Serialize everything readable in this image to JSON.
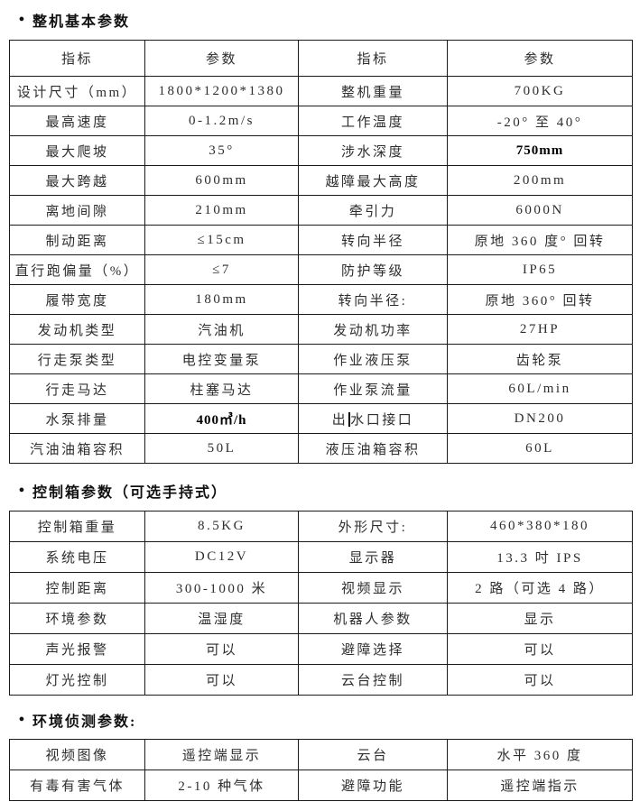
{
  "colors": {
    "background": "#ffffff",
    "text": "#2e2e2e",
    "heading_text": "#111111",
    "border": "#1a1a1a",
    "bold_text": "#000000"
  },
  "sections": [
    {
      "bullet": "●",
      "heading": "整机基本参数",
      "header": [
        "指标",
        "参数",
        "指标",
        "参数"
      ],
      "rows": [
        [
          {
            "text": "设计尺寸（mm）"
          },
          {
            "text": "1800*1200*1380"
          },
          {
            "text": "整机重量"
          },
          {
            "text": "700KG"
          }
        ],
        [
          {
            "text": "最高速度"
          },
          {
            "text": "0-1.2m/s"
          },
          {
            "text": "工作温度"
          },
          {
            "text": "-20° 至 40°"
          }
        ],
        [
          {
            "text": "最大爬坡"
          },
          {
            "text": "35°"
          },
          {
            "text": "涉水深度"
          },
          {
            "text": "750mm",
            "bold": true
          }
        ],
        [
          {
            "text": "最大跨越"
          },
          {
            "text": "600mm"
          },
          {
            "text": "越障最大高度"
          },
          {
            "text": "200mm"
          }
        ],
        [
          {
            "text": "离地间隙"
          },
          {
            "text": "210mm"
          },
          {
            "text": "牵引力"
          },
          {
            "text": "6000N"
          }
        ],
        [
          {
            "text": "制动距离"
          },
          {
            "text": "≤15cm"
          },
          {
            "text": "转向半径"
          },
          {
            "text": "原地 360 度° 回转"
          }
        ],
        [
          {
            "text": "直行跑偏量（%）"
          },
          {
            "text": "≤7"
          },
          {
            "text": "防护等级"
          },
          {
            "text": "IP65"
          }
        ],
        [
          {
            "text": "履带宽度"
          },
          {
            "text": "180mm"
          },
          {
            "text": "转向半径:"
          },
          {
            "text": "原地 360° 回转"
          }
        ],
        [
          {
            "text": "发动机类型"
          },
          {
            "text": "汽油机"
          },
          {
            "text": "发动机功率"
          },
          {
            "text": "27HP"
          }
        ],
        [
          {
            "text": "行走泵类型"
          },
          {
            "text": "电控变量泵"
          },
          {
            "text": "作业液压泵"
          },
          {
            "text": "齿轮泵"
          }
        ],
        [
          {
            "text": "行走马达"
          },
          {
            "text": "柱塞马达"
          },
          {
            "text": "作业泵流量"
          },
          {
            "text": "60L/min"
          }
        ],
        [
          {
            "text": "水泵排量",
            "bold": false
          },
          {
            "text": "400㎥/h",
            "bold": true
          },
          {
            "text": "出水口接口",
            "caret_pos": 1
          },
          {
            "text": "DN200"
          }
        ],
        [
          {
            "text": "汽油油箱容积"
          },
          {
            "text": "50L"
          },
          {
            "text": "液压油箱容积"
          },
          {
            "text": "60L"
          }
        ]
      ]
    },
    {
      "bullet": "●",
      "heading": "控制箱参数（可选手持式）",
      "header": null,
      "rows": [
        [
          {
            "text": "控制箱重量"
          },
          {
            "text": "8.5KG"
          },
          {
            "text": "外形尺寸:"
          },
          {
            "text": "460*380*180"
          }
        ],
        [
          {
            "text": "系统电压"
          },
          {
            "text": "DC12V"
          },
          {
            "text": "显示器"
          },
          {
            "text": "13.3 吋 IPS"
          }
        ],
        [
          {
            "text": "控制距离"
          },
          {
            "text": "300-1000 米"
          },
          {
            "text": "视频显示"
          },
          {
            "text": "2 路（可选 4 路）"
          }
        ],
        [
          {
            "text": "环境参数"
          },
          {
            "text": "温湿度"
          },
          {
            "text": "机器人参数"
          },
          {
            "text": "显示"
          }
        ],
        [
          {
            "text": "声光报警"
          },
          {
            "text": "可以"
          },
          {
            "text": "避障选择"
          },
          {
            "text": "可以"
          }
        ],
        [
          {
            "text": "灯光控制"
          },
          {
            "text": "可以"
          },
          {
            "text": "云台控制"
          },
          {
            "text": "可以"
          }
        ]
      ]
    },
    {
      "bullet": "●",
      "heading": "环境侦测参数:",
      "header": null,
      "rows": [
        [
          {
            "text": "视频图像"
          },
          {
            "text": "遥控端显示"
          },
          {
            "text": "云台"
          },
          {
            "text": "水平 360 度"
          }
        ],
        [
          {
            "text": "有毒有害气体"
          },
          {
            "text": "2-10 种气体"
          },
          {
            "text": "避障功能"
          },
          {
            "text": "遥控端指示"
          }
        ]
      ]
    }
  ]
}
